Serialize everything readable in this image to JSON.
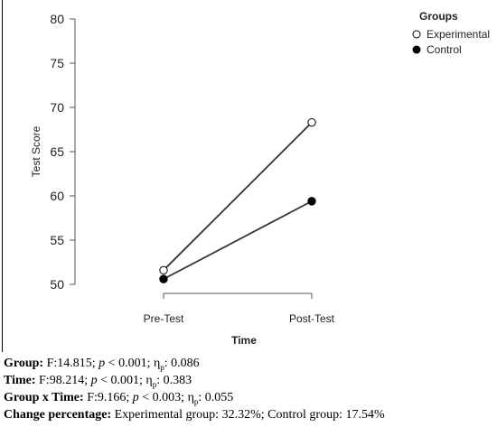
{
  "chart_data": {
    "type": "line",
    "title": "",
    "xlabel": "Time",
    "ylabel": "Test Score",
    "categories": [
      "Pre-Test",
      "Post-Test"
    ],
    "ylim": [
      50,
      80
    ],
    "yticks": [
      50,
      55,
      60,
      65,
      70,
      75,
      80
    ],
    "grid": false,
    "legend": {
      "title": "Groups",
      "placement": "top-right"
    },
    "series": [
      {
        "name": "Experimental",
        "marker": "open-circle",
        "values": [
          51.6,
          68.3
        ]
      },
      {
        "name": "Control",
        "marker": "filled-circle",
        "values": [
          50.6,
          59.4
        ]
      }
    ]
  },
  "stats": [
    {
      "label": "Group:",
      "f": " F:14.815; ",
      "p_sym": "p",
      "p": " < 0.001; ",
      "eta": "η",
      "eta_sub": "p",
      "eta_val": ": 0.086"
    },
    {
      "label": "Time:",
      "f": " F:98.214; ",
      "p_sym": "p",
      "p": " < 0.001; ",
      "eta": "η",
      "eta_sub": "p",
      "eta_val": ": 0.383"
    },
    {
      "label": "Group x Time:",
      "f": " F:9.166; ",
      "p_sym": "p",
      "p": " < 0.003; ",
      "eta": "η",
      "eta_sub": "p",
      "eta_val": ": 0.055"
    }
  ],
  "change": {
    "label": "Change percentage:",
    "text": " Experimental group: 32.32%; Control group: 17.54%"
  },
  "colors": {
    "line": "#333333",
    "axis": "#555555",
    "marker_fill": "#000000",
    "marker_open": "#ffffff"
  }
}
